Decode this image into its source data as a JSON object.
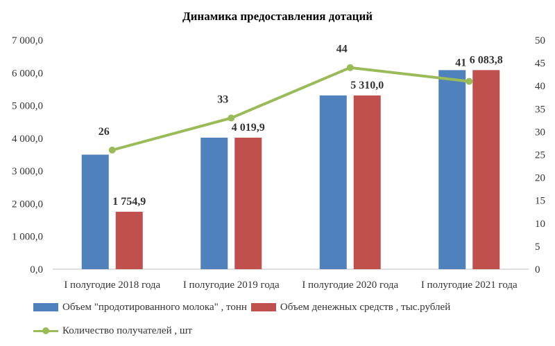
{
  "chart_data": {
    "type": "bar",
    "title": "Динамика предоставления дотаций",
    "categories": [
      "I полугодие 2018 года",
      "I полугодие 2019 года",
      "I полугодие 2020 года",
      "I полугодие 2021 года"
    ],
    "series": [
      {
        "name": "Объем  \"продотированного молока\" , тонн",
        "type": "bar",
        "axis": "left",
        "color": "#4F81BD",
        "values": [
          3500,
          4019.9,
          5310,
          6083.8
        ],
        "labels": [
          "",
          "",
          "",
          ""
        ]
      },
      {
        "name": "Объем денежных средств , тыс.рублей",
        "type": "bar",
        "axis": "left",
        "color": "#C0504D",
        "values": [
          1754.9,
          4019.9,
          5310.0,
          6083.8
        ],
        "labels": [
          "1 754,9",
          "4 019,9",
          "5 310,0",
          "6 083,8"
        ]
      },
      {
        "name": "Количество получателей , шт",
        "type": "line",
        "axis": "right",
        "color": "#9BBB59",
        "values": [
          26,
          33,
          44,
          41
        ],
        "labels": [
          "26",
          "33",
          "44",
          "41"
        ]
      }
    ],
    "left_axis": {
      "ylim": [
        0,
        7000
      ],
      "ticks": [
        0,
        1000,
        2000,
        3000,
        4000,
        5000,
        6000,
        7000
      ],
      "tick_labels": [
        "0,0",
        "1 000,0",
        "2 000,0",
        "3 000,0",
        "4 000,0",
        "5 000,0",
        "6 000,0",
        "7 000,0"
      ]
    },
    "right_axis": {
      "ylim": [
        0,
        50
      ],
      "ticks": [
        0,
        5,
        10,
        15,
        20,
        25,
        30,
        35,
        40,
        45,
        50
      ],
      "tick_labels": [
        "0",
        "5",
        "10",
        "15",
        "20",
        "25",
        "30",
        "35",
        "40",
        "45",
        "50"
      ]
    },
    "grid": false,
    "legend_position": "bottom"
  }
}
